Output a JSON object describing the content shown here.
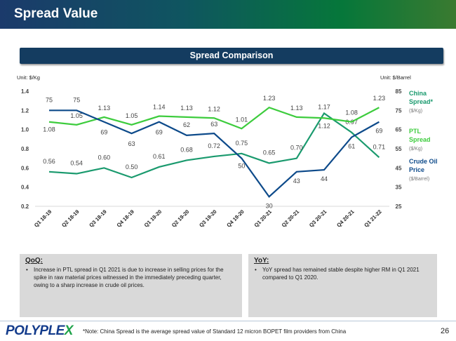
{
  "header": {
    "title": "Spread Value"
  },
  "chart_title": "Spread Comparison",
  "chart_data": {
    "type": "line",
    "title": "Spread Comparison",
    "left_unit": "Unit: $/Kg",
    "right_unit": "Unit: $/Barrel",
    "categories": [
      "Q1 18-19",
      "Q2 18-19",
      "Q3 18-19",
      "Q4 18-19",
      "Q1 19-20",
      "Q2 19-20",
      "Q3 19-20",
      "Q4 19-20",
      "Q1 20-21",
      "Q2 20-21",
      "Q3 20-21",
      "Q4 20-21",
      "Q1 21-22"
    ],
    "left_ylim": [
      0.2,
      1.4
    ],
    "left_ticks": [
      "1.4",
      "1.2",
      "1.0",
      "0.8",
      "0.6",
      "0.4",
      "0.2"
    ],
    "right_ylim": [
      25,
      85
    ],
    "right_ticks": [
      "85",
      "75",
      "65",
      "55",
      "45",
      "35",
      "25"
    ],
    "grid": false,
    "legend_placement": "right",
    "series": [
      {
        "name": "China Spread*",
        "unit": "($/Kg)",
        "axis": "left",
        "color": "#1a9a6e",
        "values": [
          0.56,
          0.54,
          0.6,
          0.5,
          0.61,
          0.68,
          0.72,
          0.75,
          0.65,
          0.7,
          1.17,
          0.97,
          0.71
        ]
      },
      {
        "name": "PTL Spread",
        "unit": "($/Kg)",
        "axis": "left",
        "color": "#3dcc3d",
        "values": [
          1.08,
          1.05,
          1.13,
          1.05,
          1.14,
          1.13,
          1.12,
          1.01,
          1.23,
          1.13,
          1.12,
          1.08,
          1.23
        ]
      },
      {
        "name": "Crude Oil Price",
        "unit": "($/Barrel)",
        "axis": "right",
        "color": "#0d4a8a",
        "values": [
          75,
          75,
          69,
          63,
          69,
          62,
          63,
          50,
          30,
          43,
          44,
          61,
          69
        ]
      }
    ]
  },
  "qoq": {
    "title": "QoQ:",
    "text": "Increase in PTL spread in Q1 2021 is due to increase in selling prices for the spike in raw material prices witnessed in the immediately preceding quarter, owing to a sharp increase in crude oil prices."
  },
  "yoy": {
    "title": "YoY:",
    "text": "YoY spread has remained stable despite higher RM in Q1 2021 compared to Q1 2020."
  },
  "footer": {
    "logo": "POLYPLEX",
    "note": "*Note: China Spread is the average spread value of Standard 12 micron BOPET film providers from China",
    "page": "26"
  }
}
